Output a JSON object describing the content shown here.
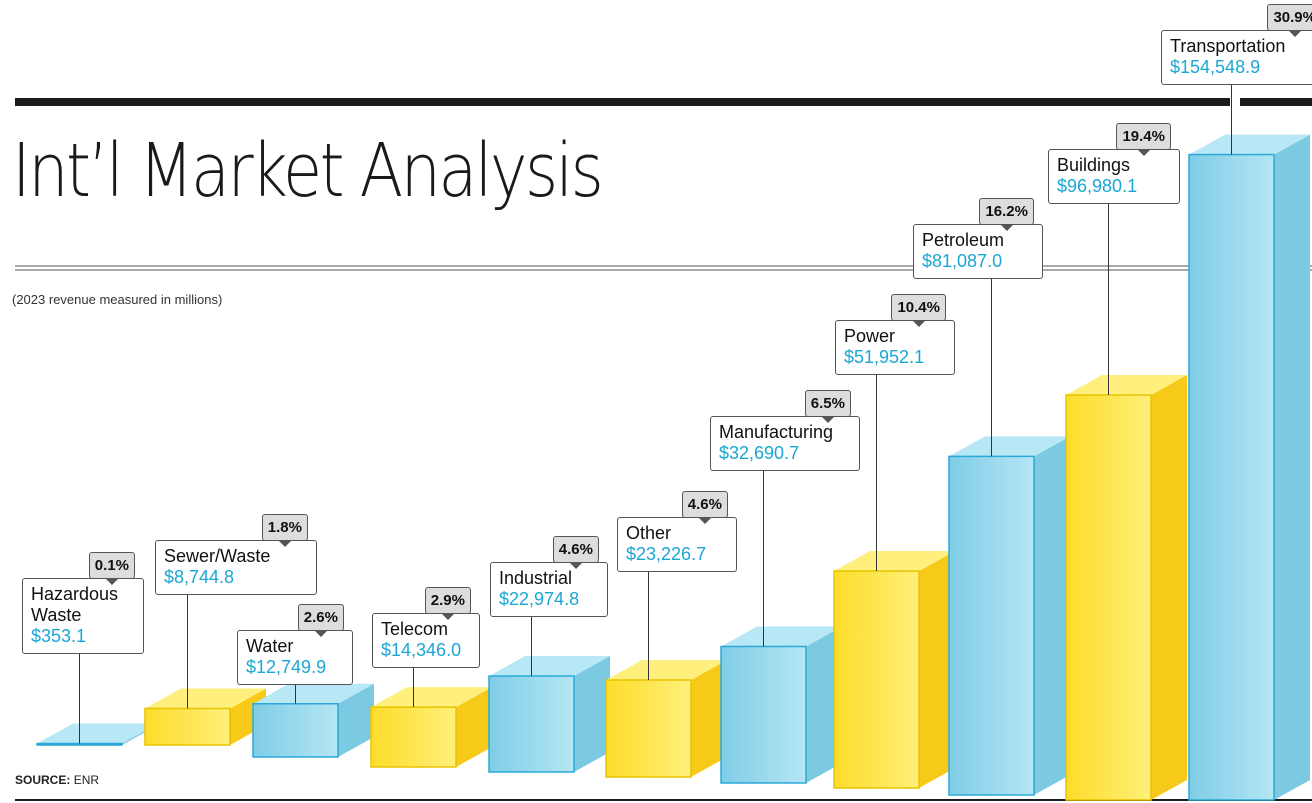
{
  "chart_data": {
    "type": "bar3d",
    "title": "Int’l Market Analysis",
    "subtitle": "(2023 revenue measured in millions)",
    "source_label": "SOURCE:",
    "source": "ENR",
    "categories": [
      "Hazardous Waste",
      "Sewer/Waste",
      "Water",
      "Telecom",
      "Industrial",
      "Other",
      "Manufacturing",
      "Power",
      "Petroleum",
      "Buildings",
      "Transportation"
    ],
    "values": [
      353.1,
      8744.8,
      12749.9,
      14346.0,
      22974.8,
      23226.7,
      32690.7,
      51952.1,
      81087.0,
      96980.1,
      154548.9
    ],
    "value_labels": [
      "$353.1",
      "$8,744.8",
      "$12,749.9",
      "$14,346.0",
      "$22,974.8",
      "$23,226.7",
      "$32,690.7",
      "$51,952.1",
      "$81,087.0",
      "$96,980.1",
      "$154,548.9"
    ],
    "shares": [
      0.1,
      1.8,
      2.6,
      2.9,
      4.6,
      4.6,
      6.5,
      10.4,
      16.2,
      19.4,
      30.9
    ],
    "share_labels": [
      "0.1%",
      "1.8%",
      "2.6%",
      "2.9%",
      "4.6%",
      "4.6%",
      "6.5%",
      "10.4%",
      "16.2%",
      "19.4%",
      "30.9%"
    ],
    "colors": [
      "#8fd6ec",
      "#fde23b",
      "#8fd6ec",
      "#fde23b",
      "#8fd6ec",
      "#fde23b",
      "#8fd6ec",
      "#fde23b",
      "#8fd6ec",
      "#fde23b",
      "#8fd6ec"
    ]
  }
}
